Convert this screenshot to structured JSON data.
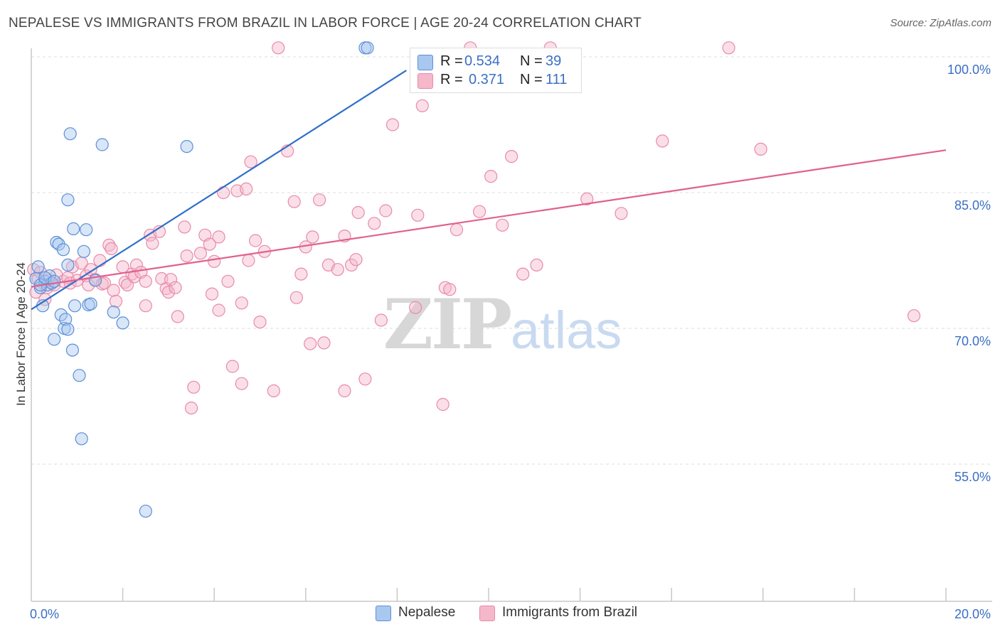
{
  "title": "NEPALESE VS IMMIGRANTS FROM BRAZIL IN LABOR FORCE | AGE 20-24 CORRELATION CHART",
  "source": "Source: ZipAtlas.com",
  "watermark": {
    "zip": "ZIP",
    "atlas": "atlas"
  },
  "colors": {
    "blue_fill": "#a9c8f0",
    "blue_stroke": "#5b8fd6",
    "blue_line": "#2f6fc9",
    "pink_fill": "#f5b8cb",
    "pink_stroke": "#e98aa8",
    "pink_line": "#e06090",
    "axis_text": "#3a6fc4",
    "grid": "#dddddd"
  },
  "legend_top": {
    "rows": [
      {
        "series": "Nepalese",
        "r_label": "R =",
        "r_value": "0.534",
        "n_label": "N =",
        "n_value": "39"
      },
      {
        "series": "Immigrants from Brazil",
        "r_label": "R =",
        "r_value": "0.371",
        "n_label": "N =",
        "n_value": "111"
      }
    ]
  },
  "legend_bottom": [
    {
      "label": "Nepalese"
    },
    {
      "label": "Immigrants from Brazil"
    }
  ],
  "chart_data": {
    "type": "scatter",
    "title": "NEPALESE VS IMMIGRANTS FROM BRAZIL IN LABOR FORCE | AGE 20-24 CORRELATION CHART",
    "xlabel": "",
    "ylabel": "In Labor Force | Age 20-24",
    "xlim": [
      0,
      20
    ],
    "ylim": [
      40,
      102
    ],
    "x_tick_labels": [
      {
        "value": 0,
        "label": "0.0%"
      },
      {
        "value": 20,
        "label": "20.0%"
      }
    ],
    "y_tick_labels": [
      {
        "value": 55,
        "label": "55.0%"
      },
      {
        "value": 70,
        "label": "70.0%"
      },
      {
        "value": 85,
        "label": "85.0%"
      },
      {
        "value": 100,
        "label": "100.0%"
      }
    ],
    "y_gridlines": [
      55,
      70,
      85,
      100
    ],
    "x_minor_ticks": [
      0,
      2,
      4,
      6,
      8,
      10,
      12,
      14,
      16,
      18,
      20
    ],
    "series": [
      {
        "name": "Nepalese",
        "color": "blue",
        "r": 0.534,
        "n": 39,
        "trend": {
          "x": [
            0,
            8.2
          ],
          "y": [
            72.1,
            98.5
          ]
        },
        "points": [
          [
            0.1,
            75.5
          ],
          [
            0.15,
            76.8
          ],
          [
            0.2,
            74.5
          ],
          [
            0.25,
            72.5
          ],
          [
            0.3,
            75.2
          ],
          [
            0.35,
            74.8
          ],
          [
            0.4,
            75.8
          ],
          [
            0.45,
            75.0
          ],
          [
            0.5,
            68.8
          ],
          [
            0.55,
            79.5
          ],
          [
            0.6,
            79.3
          ],
          [
            0.65,
            71.5
          ],
          [
            0.7,
            78.7
          ],
          [
            0.72,
            70.0
          ],
          [
            0.75,
            71.0
          ],
          [
            0.8,
            77.0
          ],
          [
            0.8,
            84.2
          ],
          [
            0.8,
            69.9
          ],
          [
            0.85,
            91.5
          ],
          [
            0.9,
            67.6
          ],
          [
            0.92,
            81.0
          ],
          [
            0.95,
            72.5
          ],
          [
            1.05,
            64.8
          ],
          [
            1.1,
            57.8
          ],
          [
            1.15,
            78.5
          ],
          [
            1.2,
            80.9
          ],
          [
            1.25,
            72.6
          ],
          [
            1.3,
            72.7
          ],
          [
            1.4,
            75.3
          ],
          [
            1.55,
            90.3
          ],
          [
            1.8,
            71.8
          ],
          [
            2.0,
            70.6
          ],
          [
            2.5,
            49.8
          ],
          [
            3.4,
            90.1
          ],
          [
            7.3,
            101.0
          ],
          [
            7.35,
            101.0
          ],
          [
            0.2,
            74.8
          ],
          [
            0.3,
            75.6
          ],
          [
            0.5,
            75.2
          ]
        ]
      },
      {
        "name": "Immigrants from Brazil",
        "color": "pink",
        "r": 0.371,
        "n": 111,
        "trend": {
          "x": [
            0,
            20
          ],
          "y": [
            74.6,
            89.7
          ]
        },
        "points": [
          [
            0.05,
            76.5
          ],
          [
            0.1,
            74.0
          ],
          [
            0.15,
            75.5
          ],
          [
            0.2,
            76.2
          ],
          [
            0.3,
            73.2
          ],
          [
            0.35,
            74.5
          ],
          [
            0.4,
            75.3
          ],
          [
            0.5,
            74.8
          ],
          [
            0.55,
            75.9
          ],
          [
            0.7,
            75.2
          ],
          [
            0.8,
            75.6
          ],
          [
            0.85,
            75.0
          ],
          [
            0.9,
            76.8
          ],
          [
            1.0,
            75.3
          ],
          [
            1.1,
            77.2
          ],
          [
            1.2,
            75.8
          ],
          [
            1.25,
            74.8
          ],
          [
            1.3,
            76.5
          ],
          [
            1.4,
            75.4
          ],
          [
            1.5,
            77.5
          ],
          [
            1.55,
            74.9
          ],
          [
            1.6,
            75.0
          ],
          [
            1.7,
            79.2
          ],
          [
            1.75,
            78.8
          ],
          [
            1.8,
            74.2
          ],
          [
            1.85,
            73.0
          ],
          [
            2.0,
            76.8
          ],
          [
            2.05,
            75.1
          ],
          [
            2.1,
            74.8
          ],
          [
            2.2,
            76.0
          ],
          [
            2.25,
            75.7
          ],
          [
            2.3,
            77.0
          ],
          [
            2.4,
            76.2
          ],
          [
            2.5,
            75.2
          ],
          [
            2.5,
            72.5
          ],
          [
            2.6,
            80.3
          ],
          [
            2.65,
            79.4
          ],
          [
            2.8,
            80.7
          ],
          [
            2.85,
            75.5
          ],
          [
            2.95,
            74.4
          ],
          [
            3.0,
            74.0
          ],
          [
            3.05,
            75.4
          ],
          [
            3.15,
            74.5
          ],
          [
            3.2,
            71.3
          ],
          [
            3.35,
            81.2
          ],
          [
            3.4,
            78.0
          ],
          [
            3.5,
            61.2
          ],
          [
            3.55,
            63.5
          ],
          [
            3.7,
            78.3
          ],
          [
            3.8,
            80.3
          ],
          [
            3.9,
            79.3
          ],
          [
            3.95,
            73.8
          ],
          [
            4.0,
            77.4
          ],
          [
            4.1,
            72.0
          ],
          [
            4.1,
            80.1
          ],
          [
            4.2,
            85.0
          ],
          [
            4.3,
            75.2
          ],
          [
            4.4,
            65.8
          ],
          [
            4.5,
            85.2
          ],
          [
            4.6,
            72.8
          ],
          [
            4.6,
            63.9
          ],
          [
            4.7,
            85.4
          ],
          [
            4.75,
            77.5
          ],
          [
            4.8,
            88.4
          ],
          [
            4.9,
            79.7
          ],
          [
            5.0,
            70.7
          ],
          [
            5.1,
            78.5
          ],
          [
            5.3,
            63.1
          ],
          [
            5.4,
            101.0
          ],
          [
            5.6,
            89.6
          ],
          [
            5.75,
            84.0
          ],
          [
            5.8,
            73.4
          ],
          [
            5.9,
            76.0
          ],
          [
            6.0,
            79.0
          ],
          [
            6.1,
            68.3
          ],
          [
            6.15,
            80.1
          ],
          [
            6.3,
            84.2
          ],
          [
            6.4,
            68.4
          ],
          [
            6.5,
            77.0
          ],
          [
            6.7,
            76.5
          ],
          [
            6.85,
            63.1
          ],
          [
            6.85,
            80.2
          ],
          [
            7.0,
            77.0
          ],
          [
            7.1,
            77.6
          ],
          [
            7.15,
            82.8
          ],
          [
            7.3,
            64.4
          ],
          [
            7.5,
            81.6
          ],
          [
            7.65,
            70.9
          ],
          [
            7.75,
            83.0
          ],
          [
            7.9,
            92.5
          ],
          [
            8.4,
            72.3
          ],
          [
            8.45,
            82.5
          ],
          [
            8.55,
            94.6
          ],
          [
            9.0,
            61.6
          ],
          [
            9.05,
            74.5
          ],
          [
            9.15,
            74.3
          ],
          [
            9.3,
            80.9
          ],
          [
            9.6,
            101.0
          ],
          [
            9.8,
            82.9
          ],
          [
            10.05,
            86.8
          ],
          [
            10.3,
            81.4
          ],
          [
            10.5,
            89.0
          ],
          [
            10.75,
            76.0
          ],
          [
            11.05,
            77.0
          ],
          [
            11.35,
            101.0
          ],
          [
            12.15,
            84.3
          ],
          [
            12.9,
            82.7
          ],
          [
            13.8,
            90.7
          ],
          [
            15.25,
            101.0
          ],
          [
            15.95,
            89.8
          ],
          [
            19.3,
            71.4
          ]
        ]
      }
    ]
  }
}
